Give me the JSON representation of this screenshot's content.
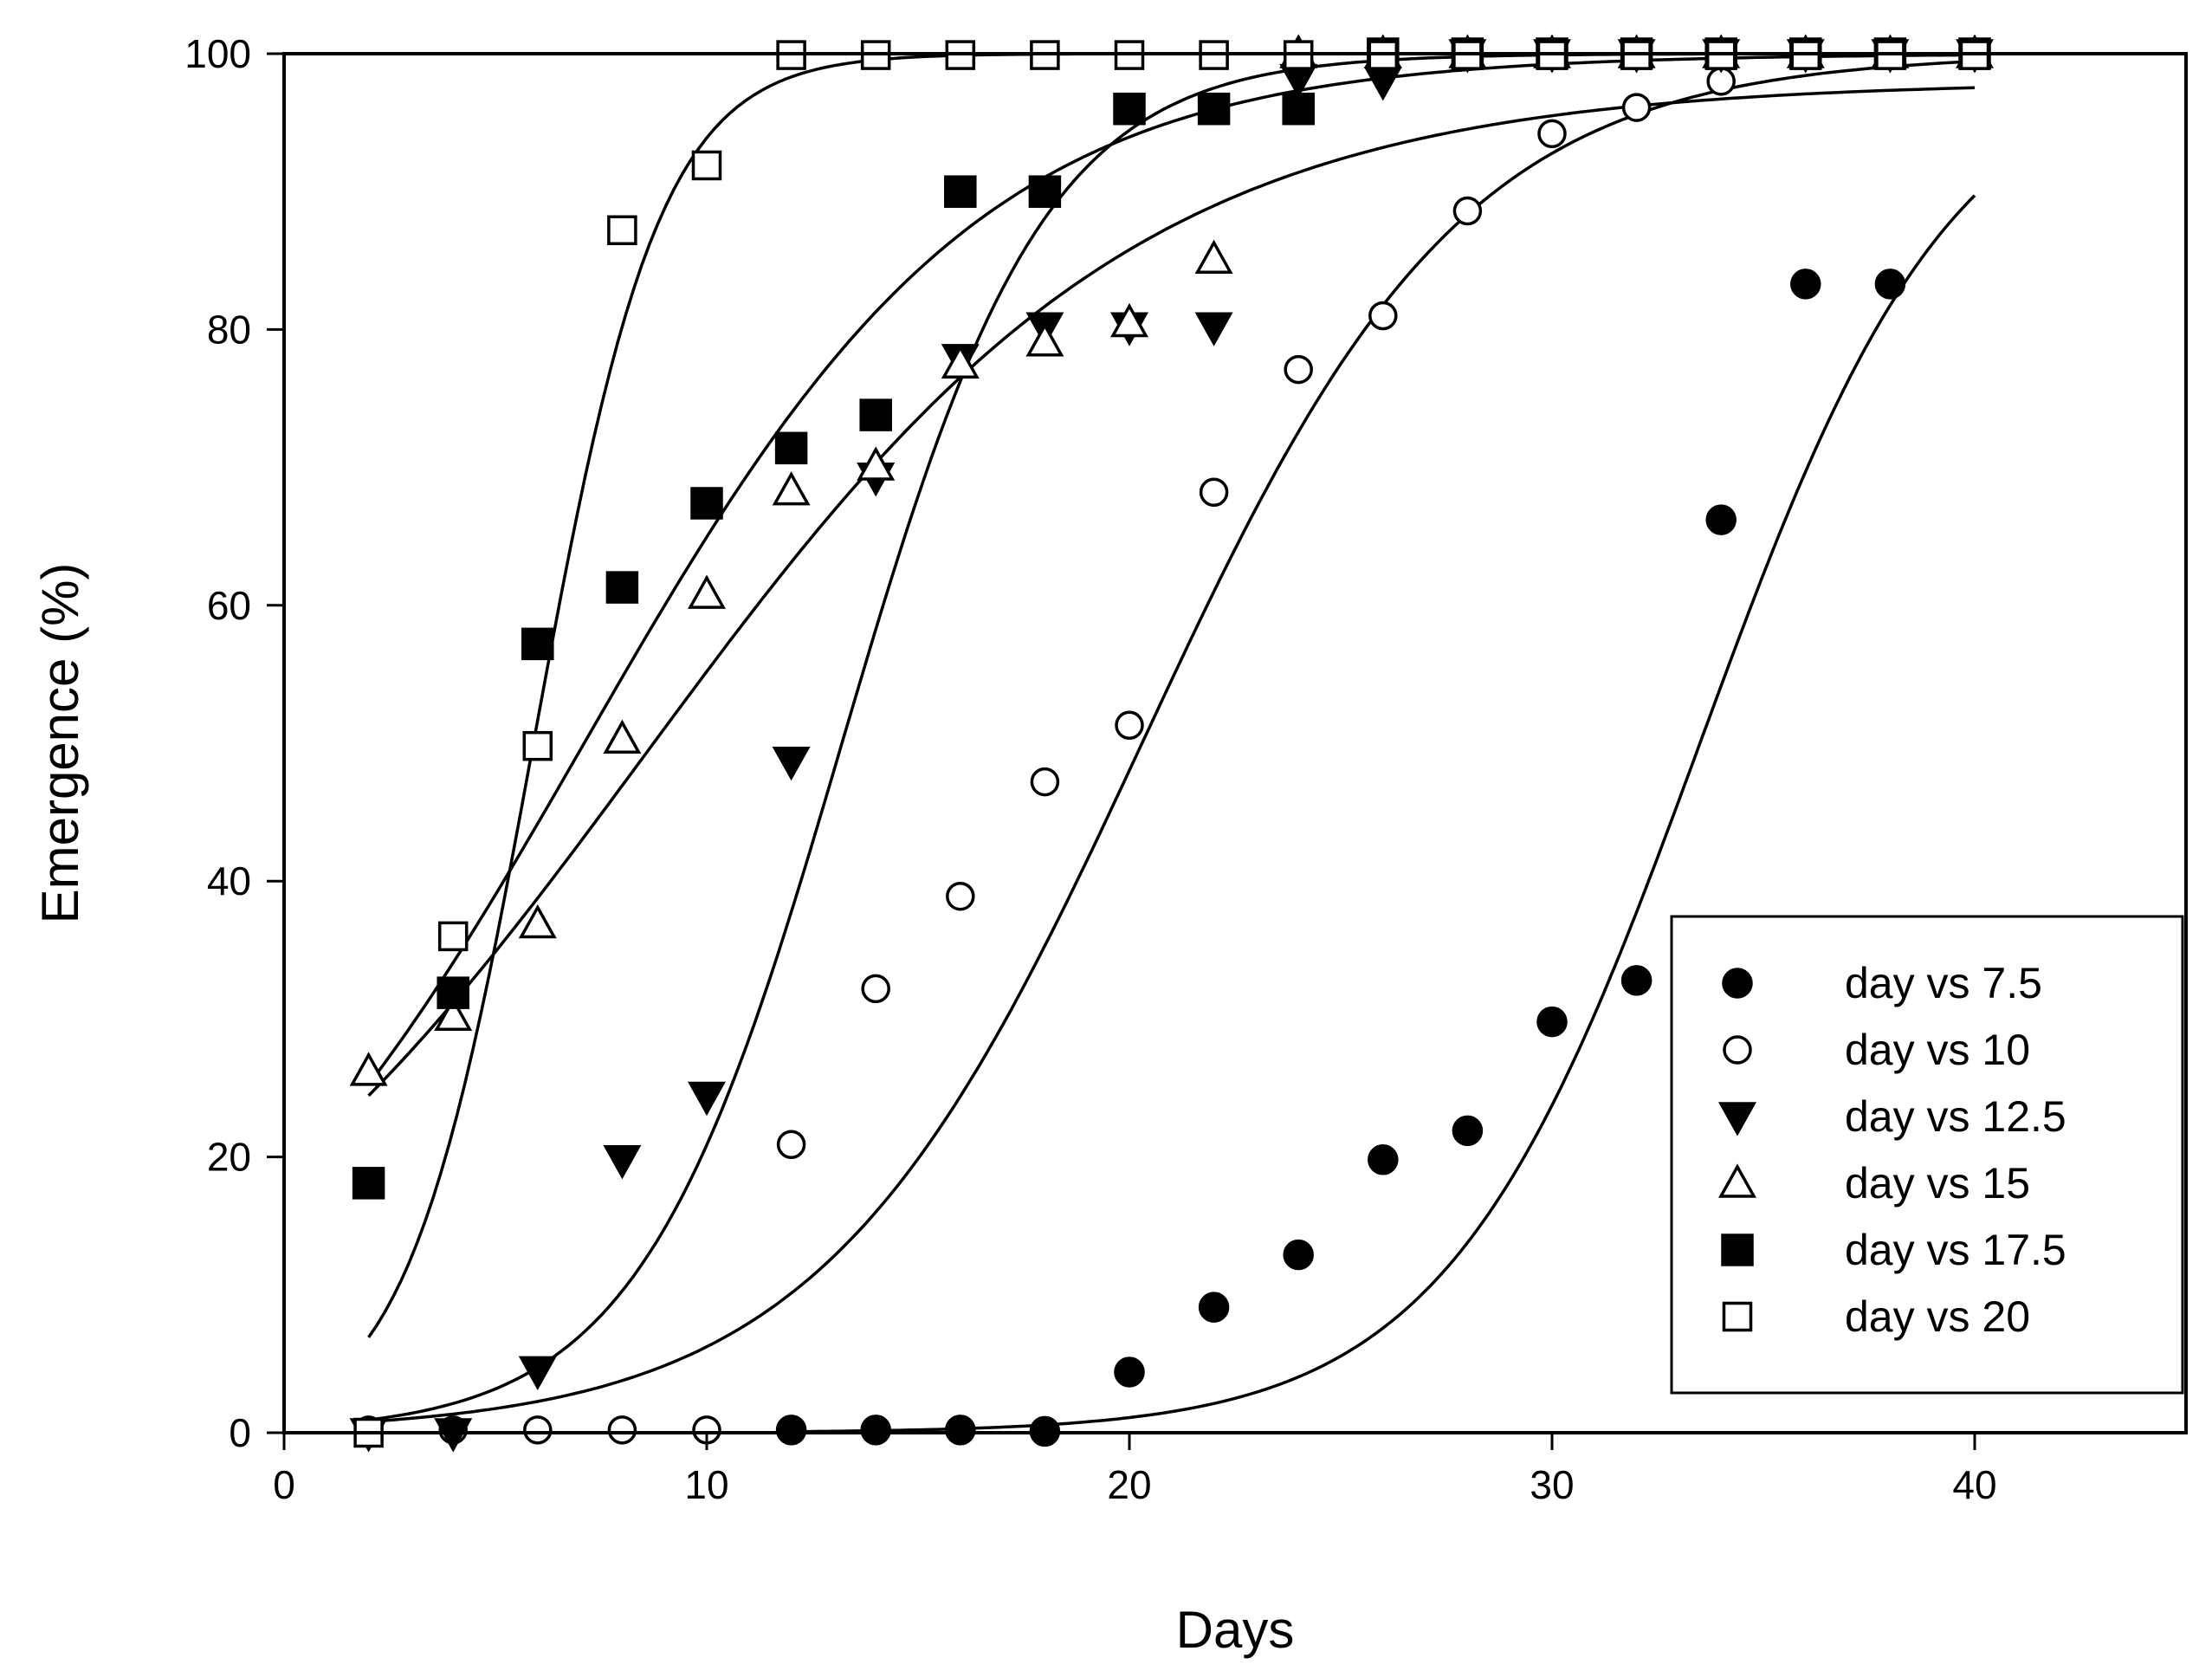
{
  "chart_data": {
    "type": "scatter",
    "title": "",
    "xlabel": "Days",
    "ylabel": "Emergence (%)",
    "xlim": [
      0,
      45
    ],
    "ylim": [
      0,
      100
    ],
    "x_ticks": [
      0,
      10,
      20,
      30,
      40
    ],
    "y_ticks": [
      0,
      20,
      40,
      60,
      80,
      100
    ],
    "grid": false,
    "legend_position": "bottom-right",
    "x": [
      2,
      4,
      6,
      8,
      10,
      12,
      14,
      16,
      18,
      20,
      22,
      24,
      26,
      28,
      30,
      32,
      34,
      36,
      38,
      40
    ],
    "series": [
      {
        "name": "day vs 7.5",
        "marker": "circle-filled",
        "values": [
          null,
          null,
          null,
          null,
          null,
          0.2,
          0.2,
          0.2,
          0.1,
          4.4,
          9.1,
          12.9,
          19.8,
          21.9,
          29.8,
          32.8,
          66.2,
          83.3,
          83.3,
          null
        ],
        "fit": {
          "y0": 0,
          "a": 100,
          "x0": 33.5,
          "b": 3.0,
          "x_range": [
            12,
            40
          ]
        }
      },
      {
        "name": "day vs 10",
        "marker": "circle-open",
        "values": [
          0.2,
          0.2,
          0.2,
          0.2,
          0.2,
          20.9,
          32.2,
          38.9,
          47.2,
          51.3,
          68.2,
          77.1,
          81.0,
          88.6,
          94.2,
          96.1,
          98.0,
          100,
          100,
          100
        ],
        "fit": {
          "y0": 0,
          "a": 100,
          "x0": 20.3,
          "b": 3.8,
          "x_range": [
            2,
            40
          ]
        }
      },
      {
        "name": "day vs 12.5",
        "marker": "triangle-down-filled",
        "values": [
          0,
          0,
          4.5,
          19.8,
          24.4,
          48.7,
          69.3,
          77.9,
          80.2,
          80.2,
          80.2,
          98.2,
          98.0,
          100,
          100,
          100,
          100,
          100,
          100,
          100
        ],
        "fit": {
          "y0": 0,
          "a": 100,
          "x0": 13.2,
          "b": 2.4,
          "x_range": [
            2,
            40
          ]
        }
      },
      {
        "name": "day vs 15",
        "marker": "triangle-up-open",
        "values": [
          26.2,
          30.2,
          36.9,
          50.3,
          60.8,
          68.3,
          70.1,
          77.5,
          79.1,
          80.5,
          85.1,
          100,
          100,
          100,
          100,
          100,
          100,
          100,
          100,
          100
        ],
        "fit": {
          "y0": 0,
          "a": 98,
          "x0": 8.5,
          "b": 5.9,
          "x_range": [
            2,
            40
          ]
        }
      },
      {
        "name": "day vs 17.5",
        "marker": "square-filled",
        "values": [
          18.1,
          31.9,
          57.2,
          61.3,
          67.4,
          71.4,
          73.8,
          90.0,
          90.0,
          96.0,
          96.0,
          96.0,
          100,
          100,
          100,
          100,
          100,
          100,
          100,
          100
        ],
        "fit": {
          "y0": 0,
          "a": 100,
          "x0": 7.1,
          "b": 4.7,
          "x_range": [
            2,
            40
          ]
        }
      },
      {
        "name": "day vs 20",
        "marker": "square-open",
        "values": [
          0,
          36.0,
          49.8,
          87.2,
          91.9,
          99.9,
          99.9,
          99.9,
          99.9,
          99.9,
          99.9,
          99.9,
          99.9,
          99.9,
          99.9,
          99.9,
          99.9,
          99.9,
          99.9,
          99.9
        ],
        "fit": {
          "y0": 0,
          "a": 100,
          "x0": 5.9,
          "b": 1.5,
          "x_range": [
            2,
            40
          ]
        }
      }
    ]
  }
}
